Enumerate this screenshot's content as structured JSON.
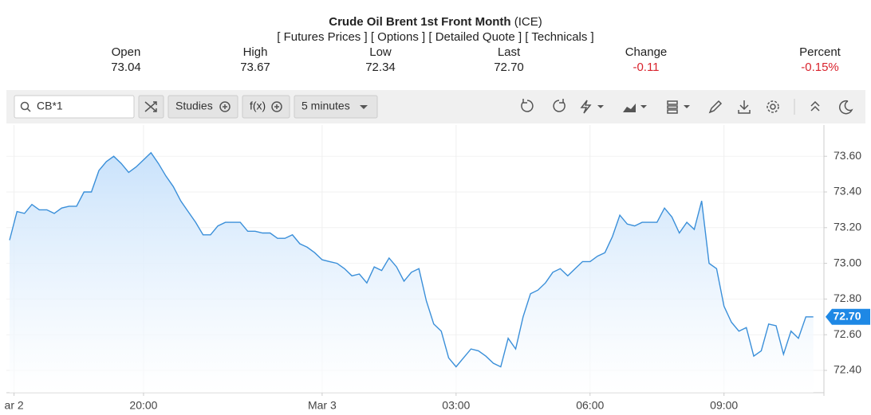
{
  "header": {
    "title": "Crude Oil Brent 1st Front Month",
    "exchange": "(ICE)",
    "links": [
      "[ Futures Prices ]",
      "[ Options ]",
      "[ Detailed Quote ]",
      "[ Technicals ]"
    ],
    "quote": [
      {
        "label": "Open",
        "value": "73.04"
      },
      {
        "label": "High",
        "value": "73.67"
      },
      {
        "label": "Low",
        "value": "72.34"
      },
      {
        "label": "Last",
        "value": "72.70"
      },
      {
        "label": "Change",
        "value": "-0.11"
      },
      {
        "label": "Percent",
        "value": "-0.15%"
      }
    ]
  },
  "toolbar": {
    "symbol": "CB*1",
    "studies": "Studies",
    "fx": "f(x)",
    "interval": "5 minutes"
  },
  "chart_data": {
    "type": "line",
    "color": "#3a8fd9",
    "grid": true,
    "current_price_label": "72.70",
    "values": [
      73.13,
      73.29,
      73.28,
      73.33,
      73.3,
      73.3,
      73.28,
      73.31,
      73.32,
      73.32,
      73.4,
      73.4,
      73.52,
      73.57,
      73.6,
      73.56,
      73.51,
      73.54,
      73.58,
      73.62,
      73.56,
      73.49,
      73.43,
      73.35,
      73.29,
      73.23,
      73.16,
      73.16,
      73.21,
      73.23,
      73.23,
      73.23,
      73.18,
      73.18,
      73.17,
      73.17,
      73.14,
      73.14,
      73.16,
      73.11,
      73.09,
      73.06,
      73.02,
      73.01,
      73.0,
      72.97,
      72.93,
      72.94,
      72.89,
      72.98,
      72.96,
      73.03,
      72.98,
      72.9,
      72.95,
      72.97,
      72.79,
      72.66,
      72.62,
      72.47,
      72.42,
      72.47,
      72.52,
      72.51,
      72.48,
      72.44,
      72.42,
      72.58,
      72.52,
      72.7,
      72.83,
      72.85,
      72.89,
      72.95,
      72.97,
      72.93,
      72.97,
      73.01,
      73.01,
      73.04,
      73.06,
      73.15,
      73.27,
      73.22,
      73.21,
      73.23,
      73.23,
      73.23,
      73.31,
      73.26,
      73.17,
      73.23,
      73.19,
      73.35,
      73.0,
      72.97,
      72.76,
      72.67,
      72.62,
      72.64,
      72.48,
      72.51,
      72.66,
      72.65,
      72.49,
      72.62,
      72.58,
      72.7,
      72.7
    ],
    "xlim": [
      0,
      109
    ],
    "xticks": [
      {
        "value": 0.6,
        "label": "ar 2"
      },
      {
        "value": 18,
        "label": "20:00"
      },
      {
        "value": 42,
        "label": "Mar 3"
      },
      {
        "value": 60,
        "label": "03:00"
      },
      {
        "value": 78,
        "label": "06:00"
      },
      {
        "value": 96,
        "label": "09:00"
      }
    ],
    "ylim": [
      72.275,
      73.775
    ],
    "yticks": [
      {
        "value": 72.4,
        "label": "72.40"
      },
      {
        "value": 72.6,
        "label": "72.60"
      },
      {
        "value": 72.8,
        "label": "72.80"
      },
      {
        "value": 73.0,
        "label": "73.00"
      },
      {
        "value": 73.2,
        "label": "73.20"
      },
      {
        "value": 73.4,
        "label": "73.40"
      },
      {
        "value": 73.6,
        "label": "73.60"
      }
    ]
  }
}
